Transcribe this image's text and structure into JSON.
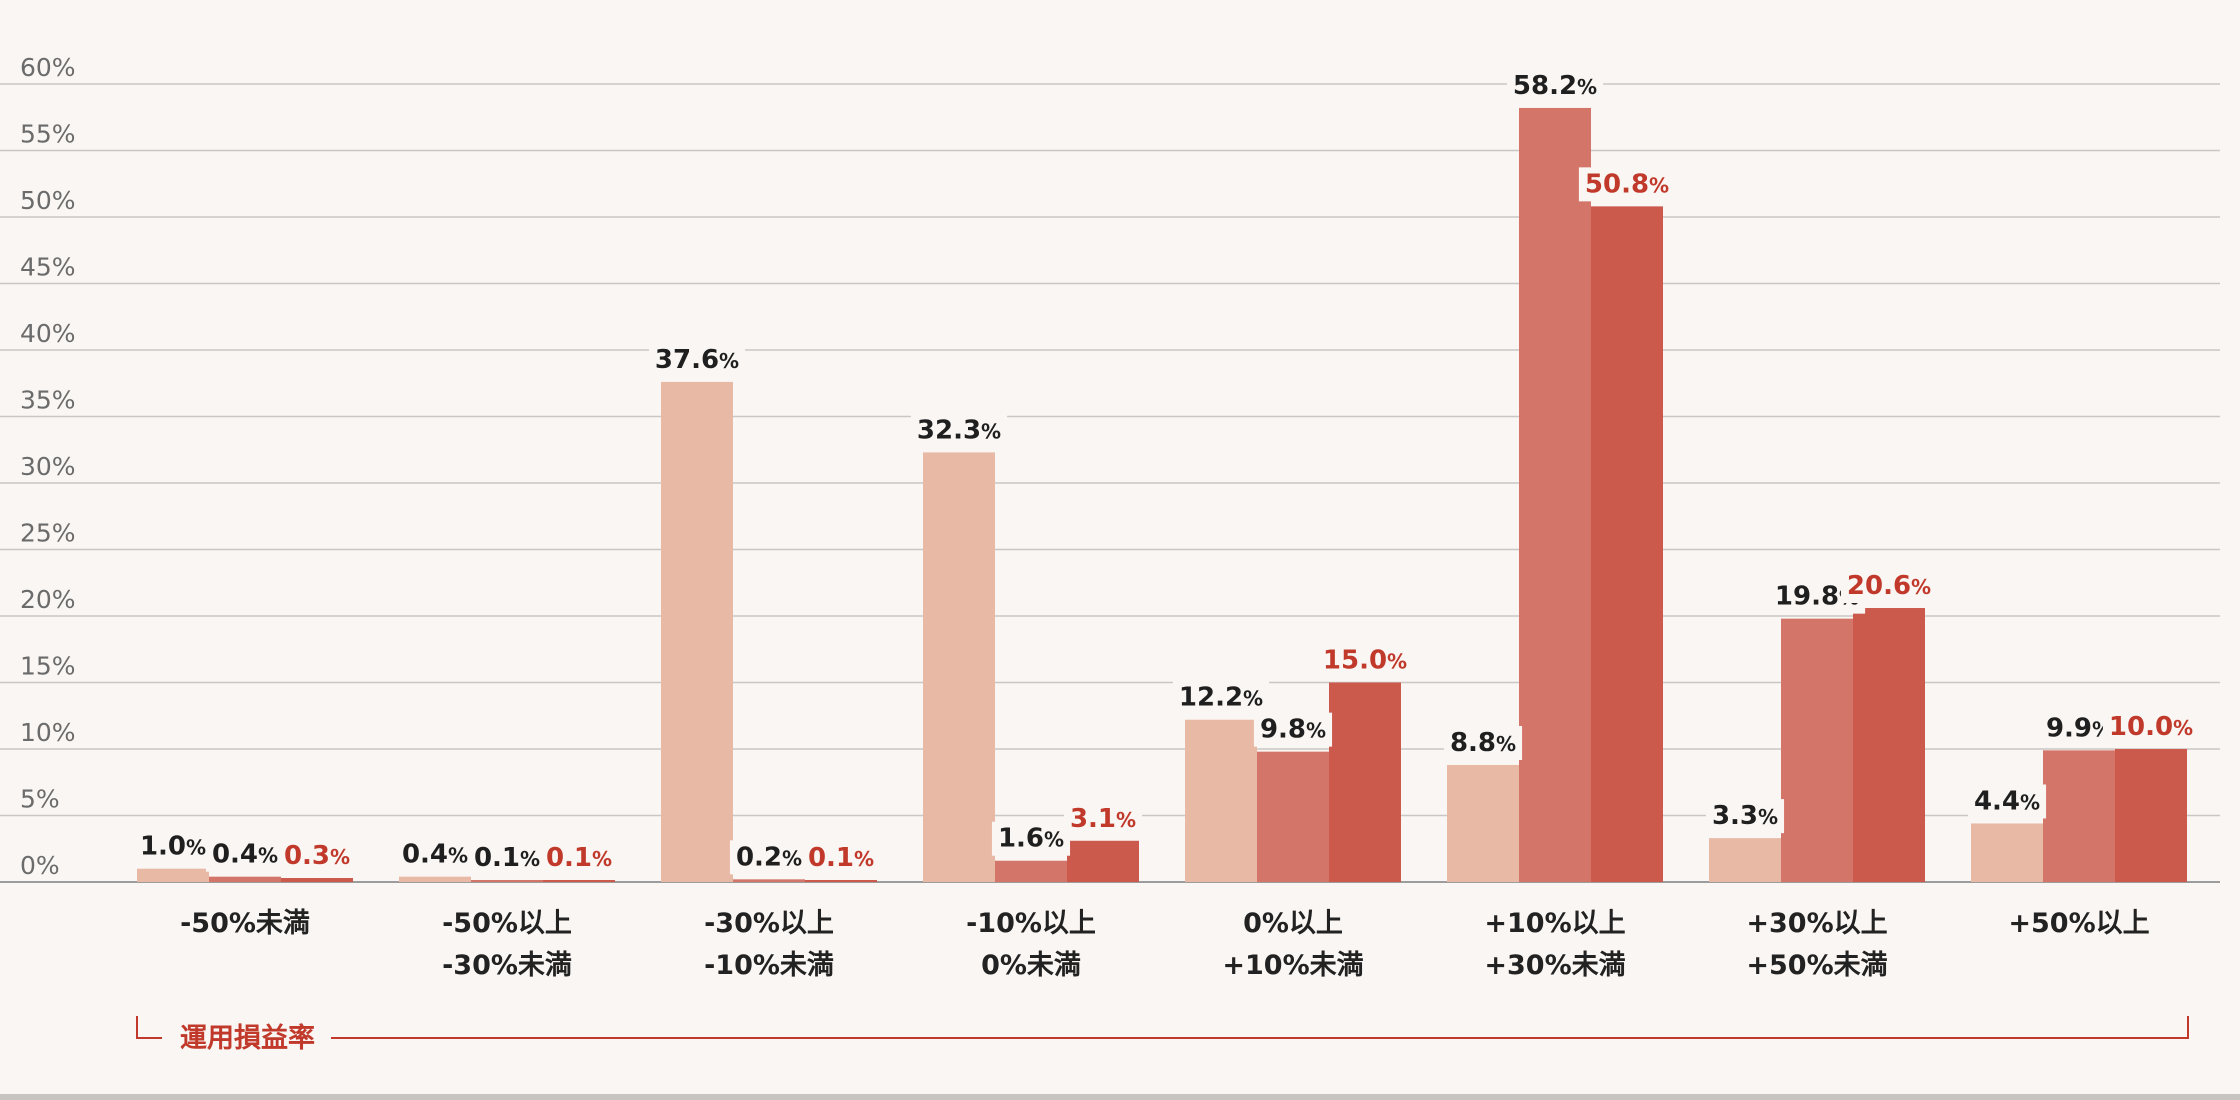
{
  "chart_data": {
    "type": "bar",
    "categories": [
      [
        "-50%未満"
      ],
      [
        "-50%以上",
        "-30%未満"
      ],
      [
        "-30%以上",
        "-10%未満"
      ],
      [
        "-10%以上",
        "0%未満"
      ],
      [
        "0%以上",
        "+10%未満"
      ],
      [
        "+10%以上",
        "+30%未満"
      ],
      [
        "+30%以上",
        "+50%未満"
      ],
      [
        "+50%以上"
      ]
    ],
    "series": [
      {
        "values": [
          1.0,
          0.4,
          37.6,
          32.3,
          12.2,
          8.8,
          3.3,
          4.4
        ],
        "color": "#e8baa5",
        "label_color": "#1f1f1f"
      },
      {
        "values": [
          0.4,
          0.1,
          0.2,
          1.6,
          9.8,
          58.2,
          19.8,
          9.9
        ],
        "color": "#d4756a",
        "label_color": "#1f1f1f"
      },
      {
        "values": [
          0.3,
          0.1,
          0.1,
          3.1,
          15.0,
          50.8,
          20.6,
          10.0
        ],
        "color": "#cb5a4c",
        "label_color": "#c0392b"
      }
    ],
    "value_suffix": "%",
    "ylim": [
      0,
      60
    ],
    "ytick_step": 5,
    "ytick_labels": [
      "0%",
      "5%",
      "10%",
      "15%",
      "20%",
      "25%",
      "30%",
      "35%",
      "40%",
      "45%",
      "50%",
      "55%",
      "60%"
    ],
    "grid": true,
    "xlabel": "運用損益率",
    "xlabel_color": "#c0392b"
  }
}
